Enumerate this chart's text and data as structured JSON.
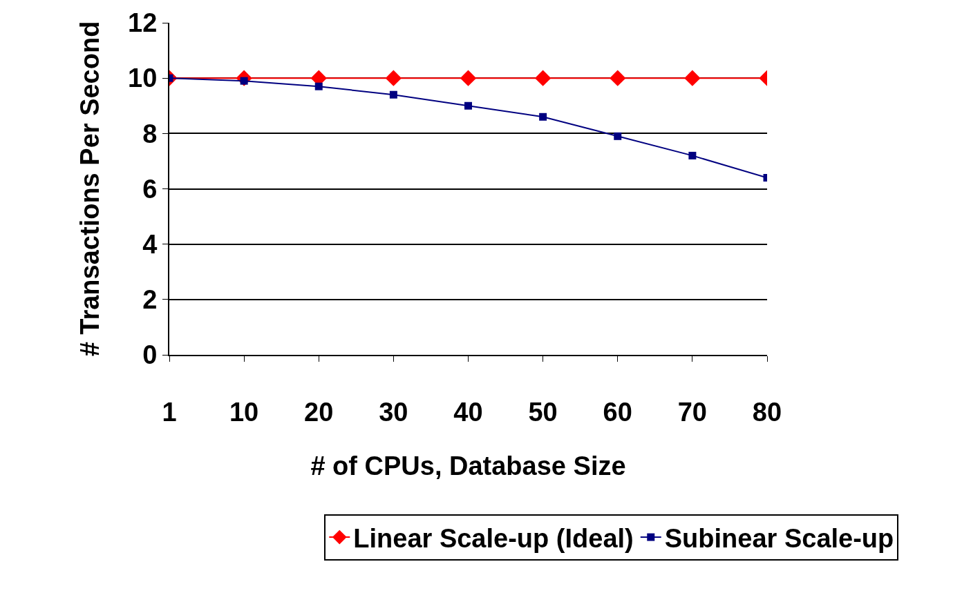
{
  "chart_data": {
    "type": "line",
    "xlabel": "# of CPUs, Database Size",
    "ylabel": "# Transactions Per Second",
    "categories": [
      "1",
      "10",
      "20",
      "30",
      "40",
      "50",
      "60",
      "70",
      "80"
    ],
    "series": [
      {
        "name": "Linear Scale-up (Ideal)",
        "color": "#ff0000",
        "marker": "diamond",
        "values": [
          10,
          10,
          10,
          10,
          10,
          10,
          10,
          10,
          10
        ]
      },
      {
        "name": "Subinear Scale-up",
        "color": "#000080",
        "marker": "square",
        "values": [
          10,
          9.9,
          9.7,
          9.4,
          9.0,
          8.6,
          7.9,
          7.2,
          6.4
        ]
      }
    ],
    "ylim": [
      0,
      12
    ],
    "yticks": [
      0,
      2,
      4,
      6,
      8,
      10,
      12
    ],
    "grid": "y",
    "legend": "bottom",
    "line_style": "solid"
  }
}
